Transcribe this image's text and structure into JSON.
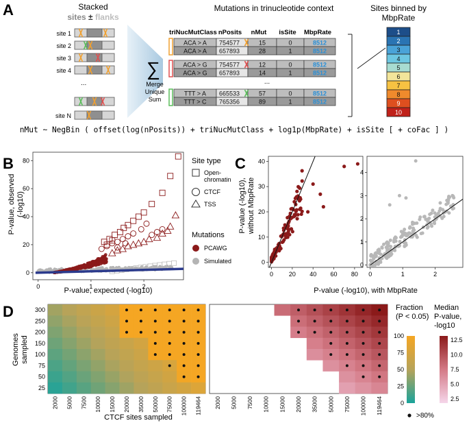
{
  "panelA": {
    "letter": "A",
    "stacked_title": "Stacked",
    "sites_word": "sites",
    "pm": "±",
    "flanks_word": "flanks",
    "site_labels": [
      "site 1",
      "site 2",
      "site 3",
      "site 4",
      "...",
      "site N"
    ],
    "sum_symbol": "∑",
    "merge_lines": [
      "Merge",
      "Unique",
      "Sum"
    ],
    "table_title": "Mutations in trinucleotide context",
    "headers": [
      "triNucMutClass",
      "nPosits",
      "nMut",
      "isSite",
      "MbpRate"
    ],
    "rows": [
      [
        "ACA > A",
        "754577",
        "15",
        "0",
        "8512"
      ],
      [
        "ACA > A",
        "657893",
        "28",
        "1",
        "8512"
      ],
      [
        "ACA > G",
        "754577",
        "12",
        "0",
        "8512"
      ],
      [
        "ACA > G",
        "657893",
        "14",
        "1",
        "8512"
      ],
      [
        "TTT > A",
        "665533",
        "57",
        "0",
        "8512"
      ],
      [
        "TTT > C",
        "765356",
        "89",
        "1",
        "8512"
      ]
    ],
    "ellipsis": "...",
    "bins_title_line1": "Sites binned by",
    "bins_title_line2": "MbpRate",
    "bins": [
      "1",
      "2",
      "3",
      "4",
      "5",
      "6",
      "7",
      "8",
      "9",
      "10"
    ],
    "bin_colors": [
      "#1d4e89",
      "#2a74b3",
      "#4aa3d8",
      "#6dc7e2",
      "#a8dcd1",
      "#f3e59a",
      "#f7c242",
      "#ef8a2c",
      "#de4f1f",
      "#c0211a"
    ],
    "formula": "nMut ~ NegBin ( offset(log(nPosits)) + triNucMutClass + log1p(MbpRate) + isSite [ + coFac ] )"
  },
  "panelB": {
    "letter": "B",
    "ylabel": [
      "P-value, observed",
      "(-log10)"
    ],
    "xlabel": "P-value, expected (-log10)",
    "x_ticks": [
      "0",
      "1",
      "2"
    ],
    "y_ticks": [
      "0",
      "20",
      "40",
      "60",
      "80"
    ],
    "site_type_title": "Site type",
    "site_types": [
      "Open-",
      "chromatin",
      "CTCF",
      "TSS"
    ],
    "mutations_title": "Mutations",
    "mutations": [
      "PCAWG",
      "Simulated"
    ],
    "colors": {
      "pcawg": "#8b1a1a",
      "simulated": "#b4b4b4",
      "line": "#2b3a8c"
    }
  },
  "panelC": {
    "letter": "C",
    "ylabel": [
      "P-value (-log10),",
      "without MbpRate"
    ],
    "xlabel": "P-value (-log10), with MbpRate",
    "left_x_ticks": [
      "0",
      "20",
      "40",
      "60",
      "80"
    ],
    "left_y_ticks": [
      "0",
      "10",
      "20",
      "30",
      "40"
    ],
    "right_x_ticks": [
      "0",
      "1",
      "2"
    ],
    "right_y_ticks": [
      "0",
      "1",
      "2",
      "3",
      "4"
    ]
  },
  "panelD": {
    "letter": "D",
    "ylabel": [
      "Genomes",
      "sampled"
    ],
    "xlabel": "CTCF sites sampled",
    "genomes": [
      "300",
      "250",
      "200",
      "150",
      "100",
      "75",
      "50",
      "25"
    ],
    "sites": [
      "2000",
      "5000",
      "7500",
      "10000",
      "15000",
      "20000",
      "35000",
      "50000",
      "75000",
      "100000",
      "119464"
    ],
    "fraction_title": [
      "Fraction",
      "(P < 0.05)"
    ],
    "fraction_ticks": [
      "100",
      "75",
      "50",
      "25",
      "0"
    ],
    "median_title": [
      "Median",
      "P-value,",
      "-log10"
    ],
    "median_ticks": [
      "12.5",
      "10.0",
      "7.5",
      "5.0",
      "2.5"
    ],
    "dot_label": ">80%"
  }
}
